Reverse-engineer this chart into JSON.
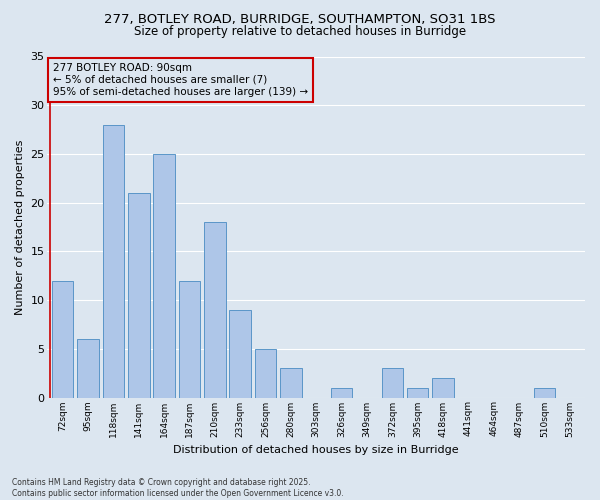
{
  "title_line1": "277, BOTLEY ROAD, BURRIDGE, SOUTHAMPTON, SO31 1BS",
  "title_line2": "Size of property relative to detached houses in Burridge",
  "xlabel": "Distribution of detached houses by size in Burridge",
  "ylabel": "Number of detached properties",
  "categories": [
    "72sqm",
    "95sqm",
    "118sqm",
    "141sqm",
    "164sqm",
    "187sqm",
    "210sqm",
    "233sqm",
    "256sqm",
    "280sqm",
    "303sqm",
    "326sqm",
    "349sqm",
    "372sqm",
    "395sqm",
    "418sqm",
    "441sqm",
    "464sqm",
    "487sqm",
    "510sqm",
    "533sqm"
  ],
  "values": [
    12,
    6,
    28,
    21,
    25,
    12,
    18,
    9,
    5,
    3,
    0,
    1,
    0,
    3,
    1,
    2,
    0,
    0,
    0,
    1,
    0
  ],
  "bar_color": "#aec6e8",
  "bar_edge_color": "#5a96c8",
  "highlight_color": "#cc0000",
  "annotation_text": "277 BOTLEY ROAD: 90sqm\n← 5% of detached houses are smaller (7)\n95% of semi-detached houses are larger (139) →",
  "annotation_box_color": "#cc0000",
  "background_color": "#dce6f0",
  "grid_color": "#ffffff",
  "ylim": [
    0,
    35
  ],
  "yticks": [
    0,
    5,
    10,
    15,
    20,
    25,
    30,
    35
  ],
  "footnote": "Contains HM Land Registry data © Crown copyright and database right 2025.\nContains public sector information licensed under the Open Government Licence v3.0."
}
